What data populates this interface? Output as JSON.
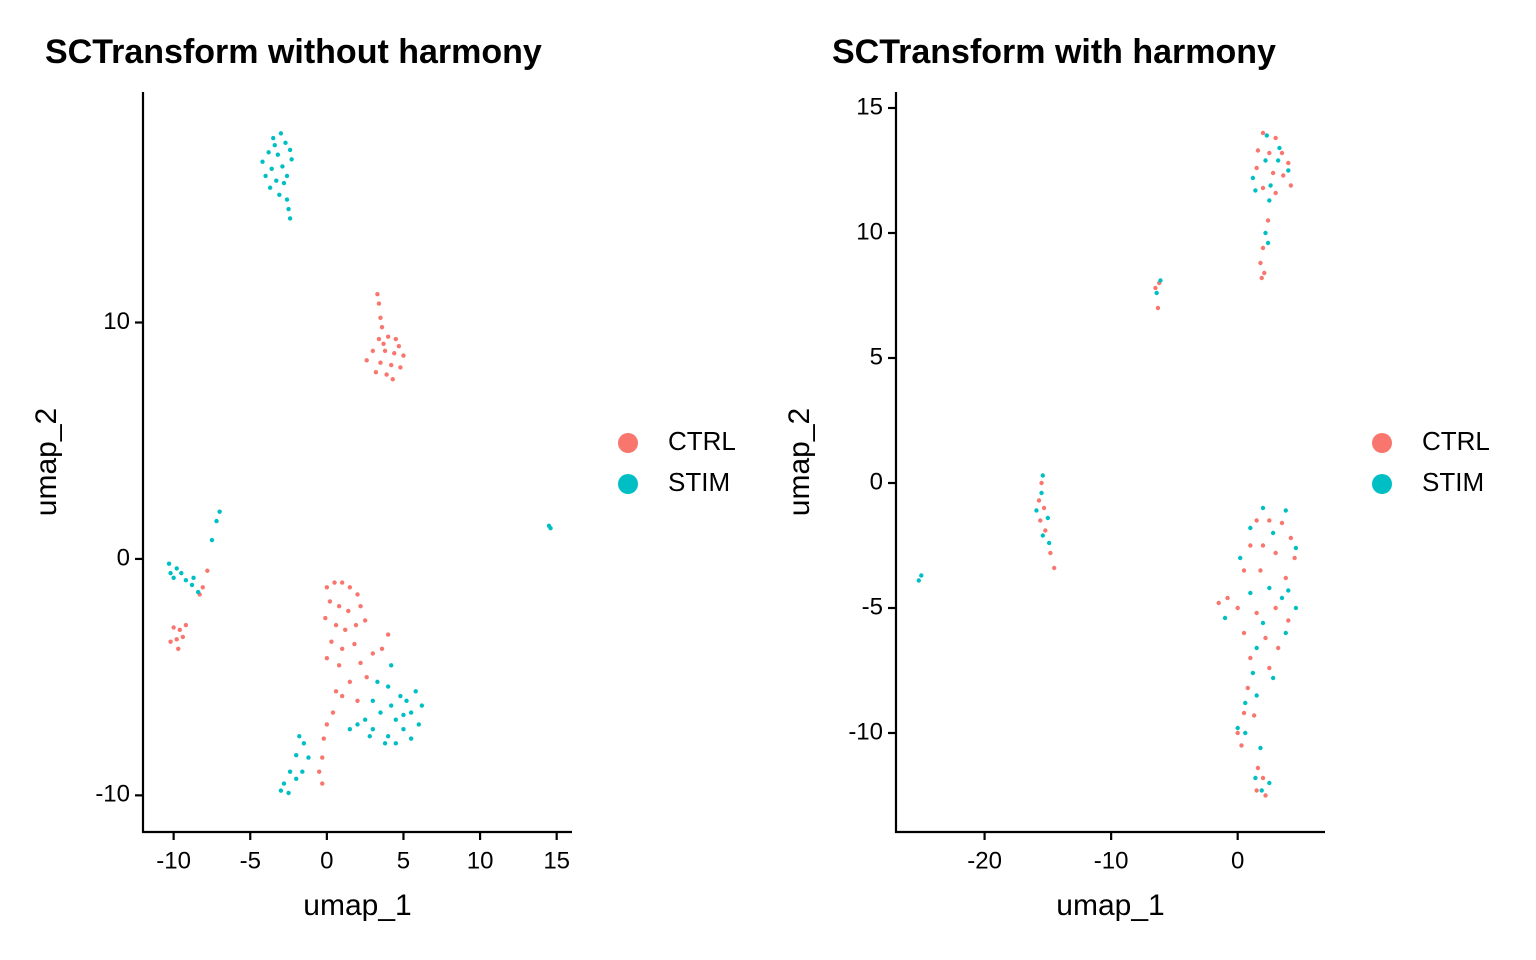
{
  "chart_data": [
    {
      "type": "scatter",
      "title": "SCTransform without harmony",
      "x_label": "umap_1",
      "y_label": "umap_2",
      "xlim": [
        -12.0,
        16.0
      ],
      "ylim": [
        -11.55,
        19.75
      ],
      "xticks": [
        -10,
        -5,
        0,
        5,
        10,
        15
      ],
      "yticks": [
        -10,
        0,
        10
      ],
      "series": [
        {
          "name": "CTRL",
          "color": "#F8766D",
          "x": [
            3.3,
            3.4,
            3.5,
            3.6,
            3.4,
            4,
            4.5,
            3,
            3.8,
            4.4,
            5,
            2.6,
            3.5,
            4.2,
            4.8,
            3.9,
            4.3,
            3.2,
            4.7,
            3.7,
            -10,
            -9.6,
            -9.8,
            -9.4,
            -10.2,
            -9.7,
            -9.2,
            -8.3,
            -7.8,
            -8.1,
            0,
            0.5,
            1,
            1.5,
            2,
            0.2,
            0.8,
            1.4,
            2.2,
            -0.1,
            0.6,
            1.2,
            1.9,
            2.5,
            0.3,
            1,
            1.8,
            0,
            0.8,
            2.2,
            3,
            3.6,
            4,
            2.6,
            1.5,
            0.6,
            0.4,
            0,
            -0.2,
            -0.3,
            -0.5,
            -0.3,
            1,
            2
          ],
          "values": [
            11.2,
            10.8,
            10.2,
            9.8,
            9.3,
            9.4,
            9.3,
            8.8,
            8.8,
            8.7,
            8.6,
            8.4,
            8.3,
            8.2,
            8.1,
            7.8,
            7.6,
            7.9,
            9,
            9.1,
            -2.9,
            -3,
            -3.4,
            -3.3,
            -3.5,
            -3.8,
            -2.8,
            -1.5,
            -0.5,
            -1.2,
            -1.2,
            -1,
            -1,
            -1.2,
            -1.5,
            -1.8,
            -2,
            -2.2,
            -2,
            -2.5,
            -2.8,
            -3,
            -2.8,
            -2.6,
            -3.5,
            -3.8,
            -3.6,
            -4.2,
            -4.5,
            -4.4,
            -4,
            -3.8,
            -3.2,
            -5,
            -5.2,
            -5.6,
            -6.5,
            -7,
            -7.6,
            -8.4,
            -9,
            -9.5,
            -5.8,
            -6
          ]
        },
        {
          "name": "STIM",
          "color": "#00BFC4",
          "x": [
            -3.5,
            -3,
            -2.7,
            -3.8,
            -3.2,
            -2.4,
            -4.2,
            -3.6,
            -2.9,
            -2.3,
            -4,
            -3.3,
            -2.8,
            -3.7,
            -3.1,
            -2.6,
            -2.5,
            -2.4,
            -3.4,
            -2.6,
            -10.3,
            -9.8,
            -10,
            -9.5,
            -9.2,
            -10.2,
            -8.8,
            -8.4,
            -7.5,
            -7.2,
            -7,
            -8.7,
            2,
            2.5,
            3,
            3.5,
            4,
            4.5,
            5,
            5.5,
            6,
            4.8,
            5.2,
            4.2,
            3.8,
            4.5,
            5.5,
            6.2,
            3,
            3.3,
            4.2,
            1.5,
            5.8,
            4,
            2.8,
            5,
            -1.8,
            -1.5,
            -2,
            -1.2,
            -2.4,
            -2.8,
            -2.5,
            -3,
            -1.6,
            -2,
            14.5,
            14.6
          ],
          "values": [
            17.8,
            18,
            17.6,
            17.2,
            17.1,
            17.3,
            16.8,
            16.5,
            16.6,
            16.9,
            16.2,
            16,
            15.9,
            15.7,
            15.4,
            15.2,
            14.8,
            14.4,
            17.5,
            16.2,
            -0.2,
            -0.4,
            -0.8,
            -0.6,
            -0.9,
            -0.6,
            -1.1,
            -1.4,
            0.8,
            1.6,
            2,
            -0.8,
            -7,
            -6.8,
            -7.2,
            -6.5,
            -7.5,
            -6.8,
            -7.2,
            -6.5,
            -7,
            -5.8,
            -6,
            -6.2,
            -7.8,
            -7.8,
            -7.6,
            -6.2,
            -6,
            -5.2,
            -4.5,
            -7.2,
            -5.6,
            -5.4,
            -7.5,
            -6.6,
            -7.5,
            -7.8,
            -8.3,
            -8.4,
            -9,
            -9.5,
            -9.9,
            -9.8,
            -9,
            -9.3,
            1.4,
            1.3
          ]
        }
      ]
    },
    {
      "type": "scatter",
      "title": "SCTransform with harmony",
      "x_label": "umap_1",
      "y_label": "umap_2",
      "xlim": [
        -27.0,
        6.9
      ],
      "ylim": [
        -13.96,
        15.64
      ],
      "xticks": [
        -20,
        -10,
        0
      ],
      "yticks": [
        -10,
        -5,
        0,
        5,
        10,
        15
      ],
      "series": [
        {
          "name": "CTRL",
          "color": "#F8766D",
          "x": [
            2,
            3,
            1.6,
            2.5,
            3.5,
            4,
            1.5,
            2.8,
            3.6,
            2,
            3,
            4.2,
            2.4,
            2,
            1.8,
            2.1,
            1.9,
            -6.2,
            -6.3,
            -6.5,
            -15.5,
            -15.7,
            -15.3,
            -15.6,
            -15.2,
            -14.8,
            -14.5,
            1.5,
            2.5,
            3.5,
            4.2,
            1,
            2,
            3,
            4.5,
            0.5,
            1.8,
            3.8,
            -1.5,
            -0.8,
            0,
            1.5,
            3,
            4,
            0.5,
            2.2,
            3.2,
            1,
            2.5,
            0.8,
            0.5,
            0,
            0.3,
            1.6,
            2,
            1.5,
            2.2,
            1.3
          ],
          "values": [
            14,
            13.8,
            13.3,
            13.2,
            13.2,
            12.8,
            12.6,
            12.4,
            12.3,
            11.8,
            11.6,
            11.9,
            10.5,
            9.4,
            8.8,
            8.4,
            8.2,
            8,
            7,
            7.8,
            0,
            -0.7,
            -1,
            -1.5,
            -1.9,
            -2.8,
            -3.4,
            -1.5,
            -1.5,
            -1.6,
            -2.2,
            -2.5,
            -2.5,
            -2.8,
            -3,
            -3.5,
            -3.5,
            -3.8,
            -4.8,
            -4.6,
            -5,
            -5.2,
            -5,
            -5.5,
            -6,
            -6.2,
            -6.6,
            -7,
            -7.4,
            -8.2,
            -9.2,
            -10,
            -10.5,
            -11.4,
            -11.8,
            -12.3,
            -12.5,
            -9.3
          ]
        },
        {
          "name": "STIM",
          "color": "#00BFC4",
          "x": [
            2.3,
            3.3,
            1.2,
            2.2,
            3.2,
            4,
            2.6,
            1.4,
            2.5,
            2.2,
            2.4,
            -6.1,
            -6.4,
            -15.4,
            -15.5,
            -15.9,
            -15,
            -15.4,
            -14.9,
            -25.2,
            -25,
            2,
            3.8,
            1,
            4.6,
            2.8,
            0.2,
            4,
            2.5,
            1,
            3.5,
            4.6,
            -1,
            2,
            3.8,
            1.5,
            2.8,
            1.2,
            0.6,
            0,
            0.6,
            1.4,
            1.9,
            2.5,
            1.8,
            1.5
          ],
          "values": [
            13.9,
            13.4,
            12.2,
            12.9,
            12.9,
            12.5,
            11.9,
            11.7,
            11.3,
            10,
            9.6,
            8.1,
            7.6,
            0.3,
            -0.4,
            -1.1,
            -1.4,
            -2.1,
            -2.4,
            -3.9,
            -3.7,
            -1,
            -1.1,
            -1.8,
            -2.6,
            -2,
            -3,
            -4.3,
            -4.2,
            -4.4,
            -4.6,
            -5,
            -5.4,
            -5.6,
            -6,
            -6.6,
            -7.8,
            -7.6,
            -8.8,
            -9.8,
            -10,
            -11.8,
            -12.3,
            -12,
            -10.6,
            -8.5
          ]
        }
      ]
    }
  ]
}
